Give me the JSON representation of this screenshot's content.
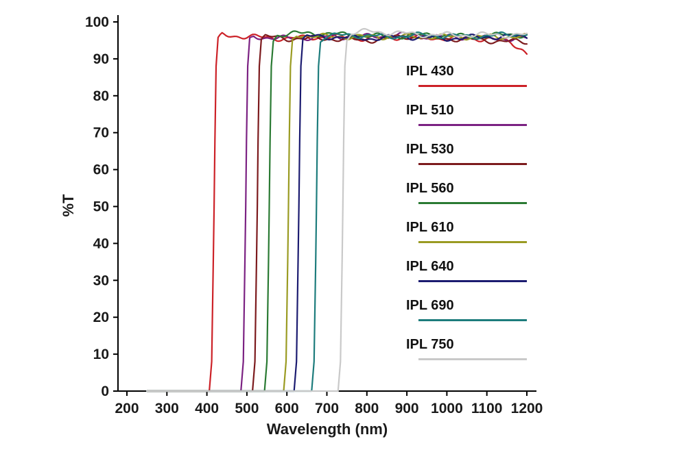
{
  "chart_data": {
    "type": "line",
    "title": "",
    "xlabel": "Wavelength (nm)",
    "ylabel": "%T",
    "xlim": [
      200,
      1200
    ],
    "ylim": [
      0,
      100
    ],
    "x_ticks": [
      200,
      300,
      400,
      500,
      600,
      700,
      800,
      900,
      1000,
      1100,
      1200
    ],
    "y_ticks": [
      0,
      10,
      20,
      30,
      40,
      50,
      60,
      70,
      80,
      90,
      100
    ],
    "grid": false,
    "legend_position": "inside-right",
    "series": [
      {
        "name": "IPL 430",
        "color": "#cc2127",
        "cutoff_nm": 418,
        "plateau_T": 96,
        "points": [
          [
            250,
            0
          ],
          [
            360,
            0
          ],
          [
            406,
            0
          ],
          [
            412,
            8
          ],
          [
            416,
            35
          ],
          [
            418,
            50
          ],
          [
            420,
            68
          ],
          [
            423,
            88
          ],
          [
            428,
            95
          ],
          [
            438,
            96.5
          ],
          [
            500,
            96
          ],
          [
            600,
            95.5
          ],
          [
            700,
            96
          ],
          [
            800,
            95.5
          ],
          [
            900,
            96
          ],
          [
            1000,
            95.5
          ],
          [
            1100,
            95.5
          ],
          [
            1160,
            94.5
          ],
          [
            1190,
            92.5
          ],
          [
            1200,
            91.5
          ]
        ]
      },
      {
        "name": "IPL 510",
        "color": "#7b2182",
        "cutoff_nm": 497,
        "plateau_T": 96,
        "points": [
          [
            250,
            0
          ],
          [
            485,
            0
          ],
          [
            491,
            8
          ],
          [
            495,
            35
          ],
          [
            497,
            50
          ],
          [
            499,
            68
          ],
          [
            502,
            88
          ],
          [
            507,
            95
          ],
          [
            517,
            96
          ],
          [
            600,
            95.5
          ],
          [
            700,
            96
          ],
          [
            800,
            96
          ],
          [
            900,
            96.5
          ],
          [
            1000,
            96
          ],
          [
            1100,
            95.5
          ],
          [
            1200,
            95.5
          ]
        ]
      },
      {
        "name": "IPL 530",
        "color": "#7c1a1d",
        "cutoff_nm": 526,
        "plateau_T": 95.5,
        "points": [
          [
            250,
            0
          ],
          [
            514,
            0
          ],
          [
            520,
            8
          ],
          [
            524,
            35
          ],
          [
            526,
            50
          ],
          [
            528,
            68
          ],
          [
            531,
            88
          ],
          [
            536,
            95
          ],
          [
            546,
            96
          ],
          [
            600,
            95.5
          ],
          [
            700,
            95.5
          ],
          [
            800,
            95
          ],
          [
            900,
            96
          ],
          [
            1000,
            95.5
          ],
          [
            1100,
            95
          ],
          [
            1200,
            94.5
          ]
        ]
      },
      {
        "name": "IPL 560",
        "color": "#2a7a33",
        "cutoff_nm": 556,
        "plateau_T": 96.5,
        "points": [
          [
            250,
            0
          ],
          [
            544,
            0
          ],
          [
            550,
            8
          ],
          [
            554,
            35
          ],
          [
            556,
            50
          ],
          [
            558,
            68
          ],
          [
            561,
            88
          ],
          [
            566,
            95
          ],
          [
            576,
            96.5
          ],
          [
            650,
            97
          ],
          [
            750,
            96.5
          ],
          [
            850,
            96
          ],
          [
            950,
            96.5
          ],
          [
            1050,
            96
          ],
          [
            1150,
            96.5
          ],
          [
            1200,
            96.5
          ]
        ]
      },
      {
        "name": "IPL 610",
        "color": "#9a9b22",
        "cutoff_nm": 604,
        "plateau_T": 96,
        "points": [
          [
            250,
            0
          ],
          [
            592,
            0
          ],
          [
            598,
            8
          ],
          [
            602,
            35
          ],
          [
            604,
            50
          ],
          [
            606,
            68
          ],
          [
            609,
            88
          ],
          [
            614,
            95
          ],
          [
            624,
            96.5
          ],
          [
            700,
            96
          ],
          [
            800,
            96
          ],
          [
            900,
            96
          ],
          [
            1000,
            96
          ],
          [
            1100,
            96
          ],
          [
            1200,
            96
          ]
        ]
      },
      {
        "name": "IPL 640",
        "color": "#1b1b70",
        "cutoff_nm": 630,
        "plateau_T": 96,
        "points": [
          [
            250,
            0
          ],
          [
            618,
            0
          ],
          [
            624,
            8
          ],
          [
            628,
            35
          ],
          [
            630,
            50
          ],
          [
            632,
            68
          ],
          [
            635,
            88
          ],
          [
            640,
            95
          ],
          [
            650,
            96
          ],
          [
            700,
            96
          ],
          [
            800,
            95.5
          ],
          [
            900,
            96
          ],
          [
            1000,
            95.5
          ],
          [
            1100,
            96
          ],
          [
            1200,
            96
          ]
        ]
      },
      {
        "name": "IPL 690",
        "color": "#1d7c7c",
        "cutoff_nm": 674,
        "plateau_T": 96.5,
        "points": [
          [
            250,
            0
          ],
          [
            662,
            0
          ],
          [
            668,
            8
          ],
          [
            672,
            35
          ],
          [
            674,
            50
          ],
          [
            676,
            68
          ],
          [
            679,
            88
          ],
          [
            684,
            95
          ],
          [
            694,
            96
          ],
          [
            750,
            96.5
          ],
          [
            850,
            96
          ],
          [
            950,
            96.5
          ],
          [
            1050,
            96
          ],
          [
            1150,
            96.5
          ],
          [
            1200,
            97
          ]
        ]
      },
      {
        "name": "IPL 750",
        "color": "#c9c9c9",
        "cutoff_nm": 740,
        "plateau_T": 97,
        "points": [
          [
            250,
            0
          ],
          [
            728,
            0
          ],
          [
            734,
            8
          ],
          [
            738,
            35
          ],
          [
            740,
            50
          ],
          [
            742,
            68
          ],
          [
            745,
            88
          ],
          [
            750,
            95
          ],
          [
            762,
            97
          ],
          [
            810,
            97.5
          ],
          [
            870,
            97
          ],
          [
            950,
            96.5
          ],
          [
            1050,
            96.5
          ],
          [
            1150,
            96.5
          ],
          [
            1200,
            96.5
          ]
        ]
      }
    ]
  }
}
